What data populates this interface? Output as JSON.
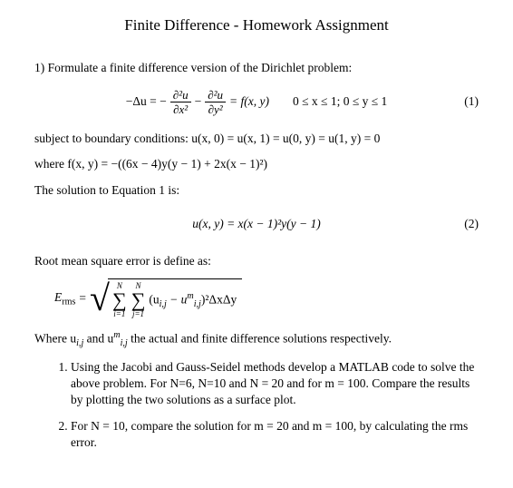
{
  "title": "Finite Difference - Homework Assignment",
  "p1_prefix": "1) Formulate a finite difference version of the Dirichlet problem:",
  "eq1": {
    "lhs": "−Δu = −",
    "frac1_num": "∂²u",
    "frac1_den": "∂x²",
    "minus": " − ",
    "frac2_num": "∂²u",
    "frac2_den": "∂y²",
    "rhs": " = f(x, y)",
    "domain": "0 ≤ x ≤ 1; 0 ≤ y ≤ 1",
    "num": "(1)"
  },
  "bc_line": "subject to boundary conditions: u(x, 0) = u(x, 1) = u(0, y) = u(1, y) = 0",
  "f_line": "where f(x, y) = −((6x − 4)y(y − 1) + 2x(x − 1)²)",
  "sol_intro": "The solution to Equation 1 is:",
  "eq2": {
    "body": "u(x, y) = x(x − 1)²y(y − 1)",
    "num": "(2)"
  },
  "rms_intro": "Root mean square error is define as:",
  "erms": {
    "lhs": "E",
    "lhs_sub": "rms",
    "eq": " = ",
    "sum1_top": "N",
    "sum1_bot": "i=1",
    "sum2_top": "N",
    "sum2_bot": "j=1",
    "term": "(u",
    "term_sub1": "i,j",
    "term_mid": " − u",
    "term_sup": "m",
    "term_sub2": "i,j",
    "term_end": ")²ΔxΔy"
  },
  "where_line_a": "Where u",
  "where_sub1": "i,j",
  "where_line_b": " and u",
  "where_sup": "m",
  "where_sub2": "i,j",
  "where_line_c": " the actual and finite difference solutions respectively.",
  "tasks": [
    "Using the Jacobi and Gauss-Seidel methods develop a MATLAB code to solve the above problem. For N=6, N=10 and N = 20 and for m = 100. Compare the results by plotting the two solutions as a surface plot.",
    "For N = 10, compare the solution for m = 20 and m = 100, by calculating the rms error."
  ]
}
